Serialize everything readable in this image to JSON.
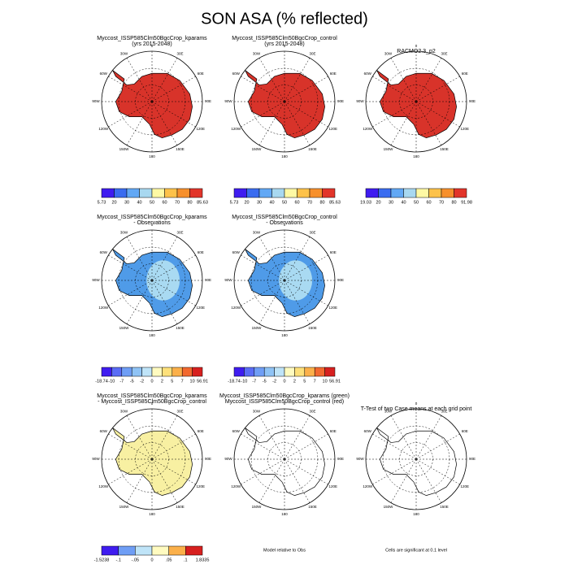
{
  "title": "SON ASA (% reflected)",
  "lon_labels": [
    "0",
    "30E",
    "60E",
    "90E",
    "120E",
    "150E",
    "180",
    "150W",
    "120W",
    "90W",
    "60W",
    "30W"
  ],
  "panels": [
    {
      "row": 0,
      "col": 0,
      "title": [
        "Myccost_ISSP585Clm50BgcCrop_kparams",
        "(yrs 2015-2048)"
      ],
      "fill": "#d8332a",
      "colorbar": {
        "colors": [
          "#3f1cf0",
          "#3a6cf0",
          "#62a8f5",
          "#a8d8f0",
          "#fef9a4",
          "#fdc24a",
          "#f7902c",
          "#e2352a"
        ],
        "labels": [
          "5.73",
          "20",
          "30",
          "40",
          "50",
          "60",
          "70",
          "80",
          "85.63"
        ]
      }
    },
    {
      "row": 0,
      "col": 1,
      "title": [
        "Myccost_ISSP585Clm50BgcCrop_control",
        "(yrs 2015-2048)"
      ],
      "fill": "#d8332a",
      "colorbar": {
        "colors": [
          "#3f1cf0",
          "#3a6cf0",
          "#62a8f5",
          "#a8d8f0",
          "#fef9a4",
          "#fdc24a",
          "#f7902c",
          "#e2352a"
        ],
        "labels": [
          "5.73",
          "20",
          "30",
          "40",
          "50",
          "60",
          "70",
          "80",
          "85.63"
        ]
      }
    },
    {
      "row": 0,
      "col": 2,
      "title": [
        "RACMO2.3_p2"
      ],
      "fill": "#d8332a",
      "colorbar": {
        "colors": [
          "#3f1cf0",
          "#3a6cf0",
          "#62a8f5",
          "#a8d8f0",
          "#fef9a4",
          "#fdc24a",
          "#f7902c",
          "#e2352a"
        ],
        "labels": [
          "19.03",
          "20",
          "30",
          "40",
          "50",
          "60",
          "70",
          "80",
          "91.98"
        ]
      }
    },
    {
      "row": 1,
      "col": 0,
      "title": [
        "Myccost_ISSP585Clm50BgcCrop_kparams",
        "- Observations"
      ],
      "fill": "#4f9be8",
      "inner_fill": "#a9daf2",
      "colorbar": {
        "colors": [
          "#3f1cf0",
          "#5a6cf5",
          "#6f9ef5",
          "#8fc3f5",
          "#bfe4f8",
          "#fffbc0",
          "#fde07a",
          "#fbb04a",
          "#f2692f",
          "#d7201f"
        ],
        "labels": [
          "-18.74",
          "-10",
          "-7",
          "-5",
          "-2",
          "0",
          "2",
          "5",
          "7",
          "10",
          "56.91"
        ]
      }
    },
    {
      "row": 1,
      "col": 1,
      "title": [
        "Myccost_ISSP585Clm50BgcCrop_control",
        "- Observations"
      ],
      "fill": "#4f9be8",
      "inner_fill": "#a9daf2",
      "colorbar": {
        "colors": [
          "#3f1cf0",
          "#5a6cf5",
          "#6f9ef5",
          "#8fc3f5",
          "#bfe4f8",
          "#fffbc0",
          "#fde07a",
          "#fbb04a",
          "#f2692f",
          "#d7201f"
        ],
        "labels": [
          "-18.74",
          "-10",
          "-7",
          "-5",
          "-2",
          "0",
          "2",
          "5",
          "7",
          "10",
          "56.91"
        ]
      }
    },
    {
      "row": 2,
      "col": 0,
      "title": [
        "Myccost_ISSP585Clm50BgcCrop_kparams",
        "- Myccost_ISSP585Clm50BgcCrop_control"
      ],
      "fill": "#f8f0a2",
      "colorbar": {
        "colors": [
          "#3f1cf0",
          "#6f9ef5",
          "#bfe4f8",
          "#fffbc0",
          "#fbb04a",
          "#d7201f"
        ],
        "labels": [
          "-1.5238",
          "-.1",
          "-.05",
          "0",
          ".05",
          ".1",
          "1.8335"
        ]
      }
    },
    {
      "row": 2,
      "col": 1,
      "title": [
        "Myccost_ISSP585Clm50BgcCrop_kparams (green)",
        "Myccost_ISSP585Clm50BgcCrop_control (red)"
      ],
      "fill": "#ffffff",
      "footnote": "Model relative to Obs"
    },
    {
      "row": 2,
      "col": 2,
      "title": [
        "T-Test of two Case means at each grid point"
      ],
      "fill": "#ffffff",
      "footnote": "Cells are significant at 0.1 level"
    }
  ]
}
